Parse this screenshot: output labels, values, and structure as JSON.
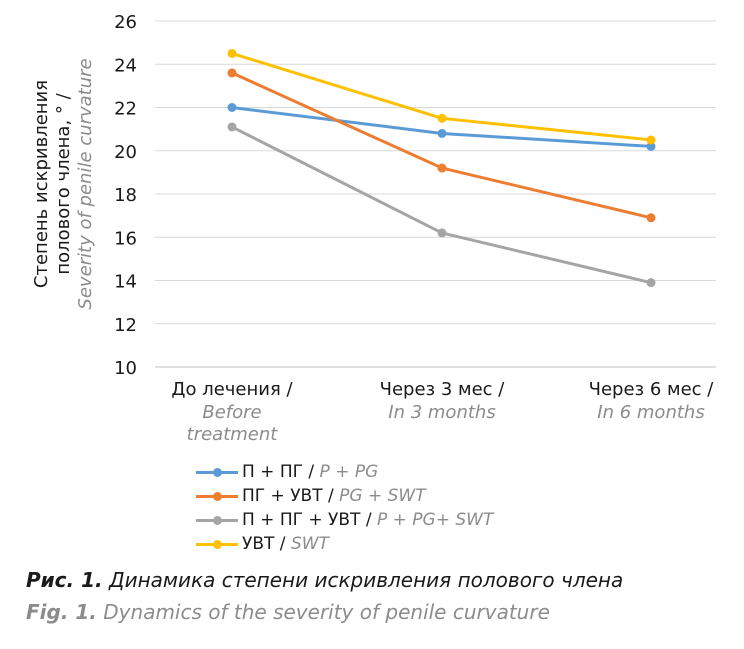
{
  "chart_data": {
    "type": "line",
    "ylabel_ru_line1": "Степень искривления",
    "ylabel_ru_line2": "полового члена, ° /",
    "ylabel_en": "Severity of penile curvature",
    "ylim": [
      10,
      26
    ],
    "yticks": [
      10,
      12,
      14,
      16,
      18,
      20,
      22,
      24,
      26
    ],
    "grid": true,
    "categories": [
      {
        "ru": "До лечения /",
        "en_lines": [
          "Before",
          "treatment"
        ]
      },
      {
        "ru": "Через 3 мес /",
        "en_lines": [
          "In 3 months"
        ]
      },
      {
        "ru": "Через 6 мес /",
        "en_lines": [
          "In 6 months"
        ]
      }
    ],
    "series": [
      {
        "name_ru": "П + ПГ",
        "name_en": "P + PG",
        "color": "#5b9bd5",
        "values": [
          22.0,
          20.8,
          20.2
        ]
      },
      {
        "name_ru": "ПГ + УВТ",
        "name_en": "PG + SWT",
        "color": "#ed7d31",
        "values": [
          23.6,
          19.2,
          16.9
        ]
      },
      {
        "name_ru": "П + ПГ + УВТ",
        "name_en": "P + PG+ SWT",
        "color": "#a5a5a5",
        "values": [
          21.1,
          16.2,
          13.9
        ]
      },
      {
        "name_ru": "УВТ",
        "name_en": "SWT",
        "color": "#ffc000",
        "values": [
          24.5,
          21.5,
          20.5
        ]
      }
    ],
    "legend_position": "bottom"
  },
  "caption": {
    "ru_label": "Рис. 1.",
    "ru_text": " Динамика степени искривления полового члена",
    "en_label": "Fig. 1.",
    "en_text": " Dynamics of the severity of penile curvature"
  }
}
